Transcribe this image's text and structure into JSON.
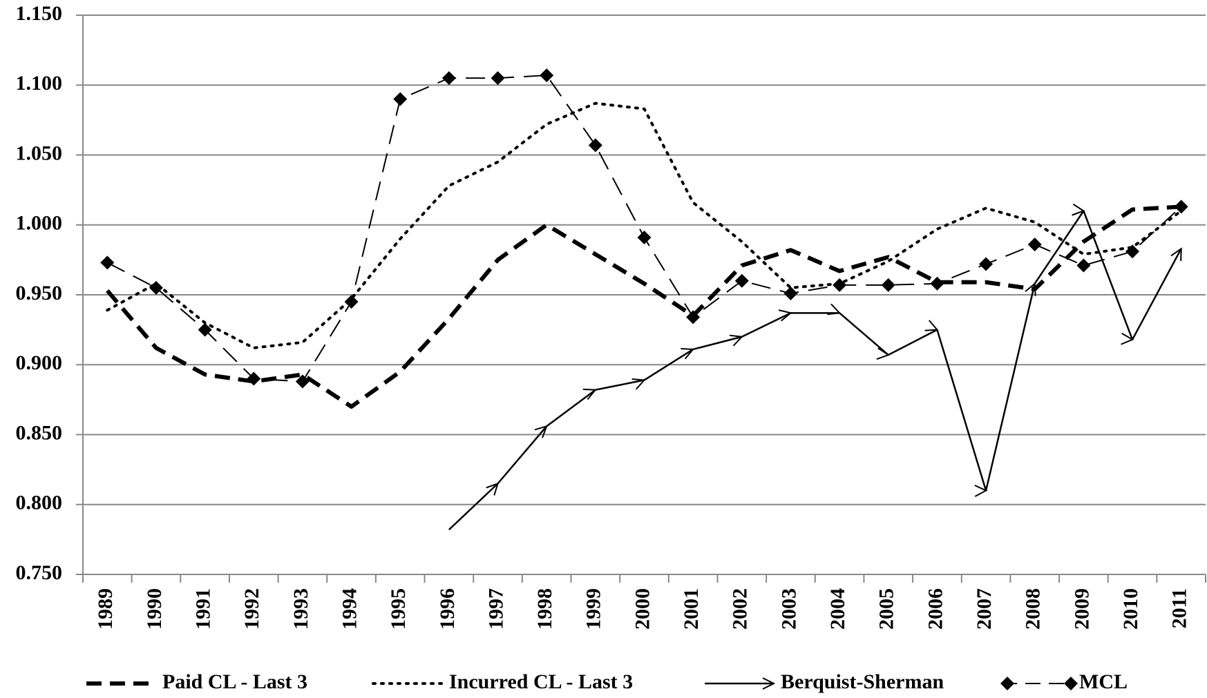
{
  "chart_data": {
    "type": "line",
    "categories": [
      "1989",
      "1990",
      "1991",
      "1992",
      "1993",
      "1994",
      "1995",
      "1996",
      "1997",
      "1998",
      "1999",
      "2000",
      "2001",
      "2002",
      "2003",
      "2004",
      "2005",
      "2006",
      "2007",
      "2008",
      "2009",
      "2010",
      "2011"
    ],
    "series": [
      {
        "name": "Paid CL - Last 3",
        "color": "#000000",
        "values": [
          0.953,
          0.912,
          0.893,
          0.888,
          0.893,
          0.87,
          0.895,
          0.933,
          0.975,
          1.0,
          0.979,
          0.958,
          0.935,
          0.971,
          0.982,
          0.967,
          0.977,
          0.959,
          0.959,
          0.954,
          0.988,
          1.011,
          1.013
        ]
      },
      {
        "name": "Incurred CL - Last 3",
        "color": "#000000",
        "values": [
          0.939,
          0.958,
          0.93,
          0.912,
          0.916,
          0.947,
          0.99,
          1.028,
          1.045,
          1.072,
          1.087,
          1.083,
          1.016,
          0.988,
          0.955,
          0.958,
          0.974,
          0.997,
          1.012,
          1.002,
          0.979,
          0.984,
          1.01
        ]
      },
      {
        "name": "Berquist-Sherman",
        "color": "#000000",
        "values": [
          null,
          null,
          null,
          null,
          null,
          null,
          null,
          0.782,
          0.815,
          0.856,
          0.882,
          0.889,
          0.911,
          0.92,
          0.937,
          0.937,
          0.907,
          0.925,
          0.81,
          0.958,
          1.01,
          0.918,
          0.983
        ]
      },
      {
        "name": "MCL",
        "color": "#000000",
        "values": [
          0.973,
          0.955,
          0.925,
          0.89,
          0.888,
          0.945,
          1.09,
          1.105,
          1.105,
          1.107,
          1.057,
          0.991,
          0.934,
          0.96,
          0.951,
          0.957,
          0.957,
          0.958,
          0.972,
          0.986,
          0.971,
          0.981,
          1.013
        ]
      }
    ],
    "ylim": [
      0.75,
      1.15
    ],
    "yticks": [
      {
        "value": 0.75,
        "label": "0.750"
      },
      {
        "value": 0.8,
        "label": "0.800"
      },
      {
        "value": 0.85,
        "label": "0.850"
      },
      {
        "value": 0.9,
        "label": "0.900"
      },
      {
        "value": 0.95,
        "label": "0.950"
      },
      {
        "value": 1.0,
        "label": "1.000"
      },
      {
        "value": 1.05,
        "label": "1.050"
      },
      {
        "value": 1.1,
        "label": "1.100"
      },
      {
        "value": 1.15,
        "label": "1.150"
      }
    ],
    "grid": true,
    "legend": "bottom"
  }
}
